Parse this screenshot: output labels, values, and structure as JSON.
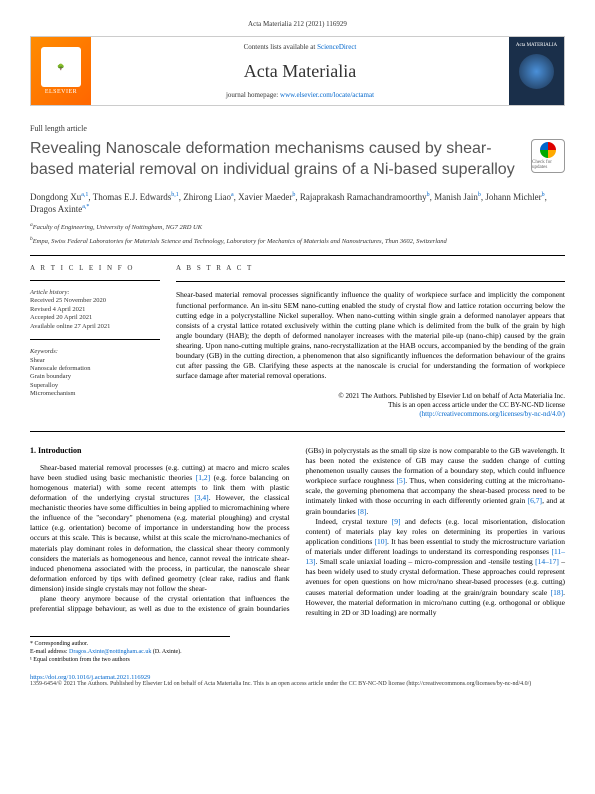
{
  "header_meta": "Acta Materialia 212 (2021) 116929",
  "journal_box": {
    "publisher": "ELSEVIER",
    "contents_prefix": "Contents lists available at ",
    "contents_link": "ScienceDirect",
    "journal_name": "Acta Materialia",
    "homepage_prefix": "journal homepage: ",
    "homepage_link": "www.elsevier.com/locate/actamat"
  },
  "article_type": "Full length article",
  "title": "Revealing Nanoscale deformation mechanisms caused by shear-based material removal on individual grains of a Ni-based superalloy",
  "check_badge": "Check for updates",
  "authors_html": "Dongdong Xu<sup>a,1</sup>, Thomas E.J. Edwards<sup>b,1</sup>, Zhirong Liao<sup>a</sup>, Xavier Maeder<sup>b</sup>, Rajaprakash Ramachandramoorthy<sup>b</sup>, Manish Jain<sup>b</sup>, Johann Michler<sup>b</sup>, Dragos Axinte<sup>a,*</sup>",
  "affiliations": {
    "a": "Faculty of Engineering, University of Nottingham, NG7 2RD UK",
    "b": "Empa, Swiss Federal Laboratories for Materials Science and Technology, Laboratory for Mechanics of Materials and Nanostructures, Thun 3602, Switzerland"
  },
  "info_heading": "A R T I C L E   I N F O",
  "abstract_heading": "A B S T R A C T",
  "history": {
    "label": "Article history:",
    "received": "Received 25 November 2020",
    "revised": "Revised 4 April 2021",
    "accepted": "Accepted 20 April 2021",
    "online": "Available online 27 April 2021"
  },
  "keywords": {
    "label": "Keywords:",
    "items": [
      "Shear",
      "Nanoscale deformation",
      "Grain boundary",
      "Superalloy",
      "Micromechanism"
    ]
  },
  "abstract": "Shear-based material removal processes significantly influence the quality of workpiece surface and implicitly the component functional performance. An in-situ SEM nano-cutting enabled the study of crystal flow and lattice rotation occurring below the cutting edge in a polycrystalline Nickel superalloy. When nano-cutting within single grain a deformed nanolayer appears that consists of a crystal lattice rotated exclusively within the cutting plane which is delimited from the bulk of the grain by high angle boundary (HAB); the depth of deformed nanolayer increases with the material pile-up (nano-chip) caused by the grain shearing. Upon nano-cutting multiple grains, nano-recrystallization at the HAB occurs, accompanied by the bending of the grain boundary (GB) in the cutting direction, a phenomenon that also significantly influences the deformation behaviour of the grains cut after passing the GB. Clarifying these aspects at the nanoscale is crucial for understanding the formation of workpiece surface damage after material removal operations.",
  "copyright": {
    "line1": "© 2021 The Authors. Published by Elsevier Ltd on behalf of Acta Materialia Inc.",
    "line2": "This is an open access article under the CC BY-NC-ND license",
    "link": "(http://creativecommons.org/licenses/by-nc-nd/4.0/)"
  },
  "section": {
    "heading": "1. Introduction",
    "col1_p1": "Shear-based material removal processes (e.g. cutting) at macro and micro scales have been studied using basic mechanistic theories [1,2] (e.g. force balancing on homogenous material) with some recent attempts to link them with plastic deformation of the underlying crystal structures [3,4]. However, the classical mechanistic theories have some difficulties in being applied to micromachining where the influence of the \"secondary\" phenomena (e.g. material ploughing) and crystal lattice (e.g. orientation) become of importance in understanding how the process occurs at this scale. This is because, whilst at this scale the micro/nano-mechanics of materials play dominant roles in deformation, the classical shear theory commonly considers the materials as homogeneous and hence, cannot reveal the intricate shear-induced phenomena associated with the process, in particular, the nanoscale shear deformation enforced by tips with defined geometry (clear rake, radius and flank dimension) inside single crystals may not follow the shear-",
    "col2_p1": "plane theory anymore because of the crystal orientation that influences the preferential slippage behaviour, as well as due to the existence of grain boundaries (GBs) in polycrystals as the small tip size is now comparable to the GB wavelength. It has been noted the existence of GB may cause the sudden change of cutting phenomenon usually causes the formation of a boundary step, which could influence workpiece surface roughness [5]. Thus, when considering cutting at the micro/nano-scale, the governing phenomena that accompany the shear-based process need to be intimately linked with those occurring in each differently oriented grain [6,7], and at grain boundaries [8].",
    "col2_p2": "Indeed, crystal texture [9] and defects (e.g. local misorientation, dislocation content) of materials play key roles on determining its properties in various application conditions [10]. It has been essential to study the microstructure variation of materials under different loadings to understand its corresponding responses [11–13]. Small scale uniaxial loading – micro-compression and -tensile testing [14–17] – has been widely used to study crystal deformation. These approaches could represent avenues for open questions on how micro/nano shear-based processes (e.g. cutting) causes material deformation under loading at the grain/grain boundary scale [18]. However, the material deformation in micro/nano cutting (e.g. orthogonal or oblique resulting in 2D or 3D loading) are normally"
  },
  "footer": {
    "corr": "* Corresponding author.",
    "email_label": "E-mail address: ",
    "email": "Dragos.Axinte@nottingham.ac.uk",
    "email_suffix": " (D. Axinte).",
    "equal": "¹ Equal contribution from the two authors",
    "doi": "https://doi.org/10.1016/j.actamat.2021.116929",
    "bottom": "1359-6454/© 2021 The Authors. Published by Elsevier Ltd on behalf of Acta Materialia Inc. This is an open access article under the CC BY-NC-ND license (http://creativecommons.org/licenses/by-nc-nd/4.0/)"
  }
}
